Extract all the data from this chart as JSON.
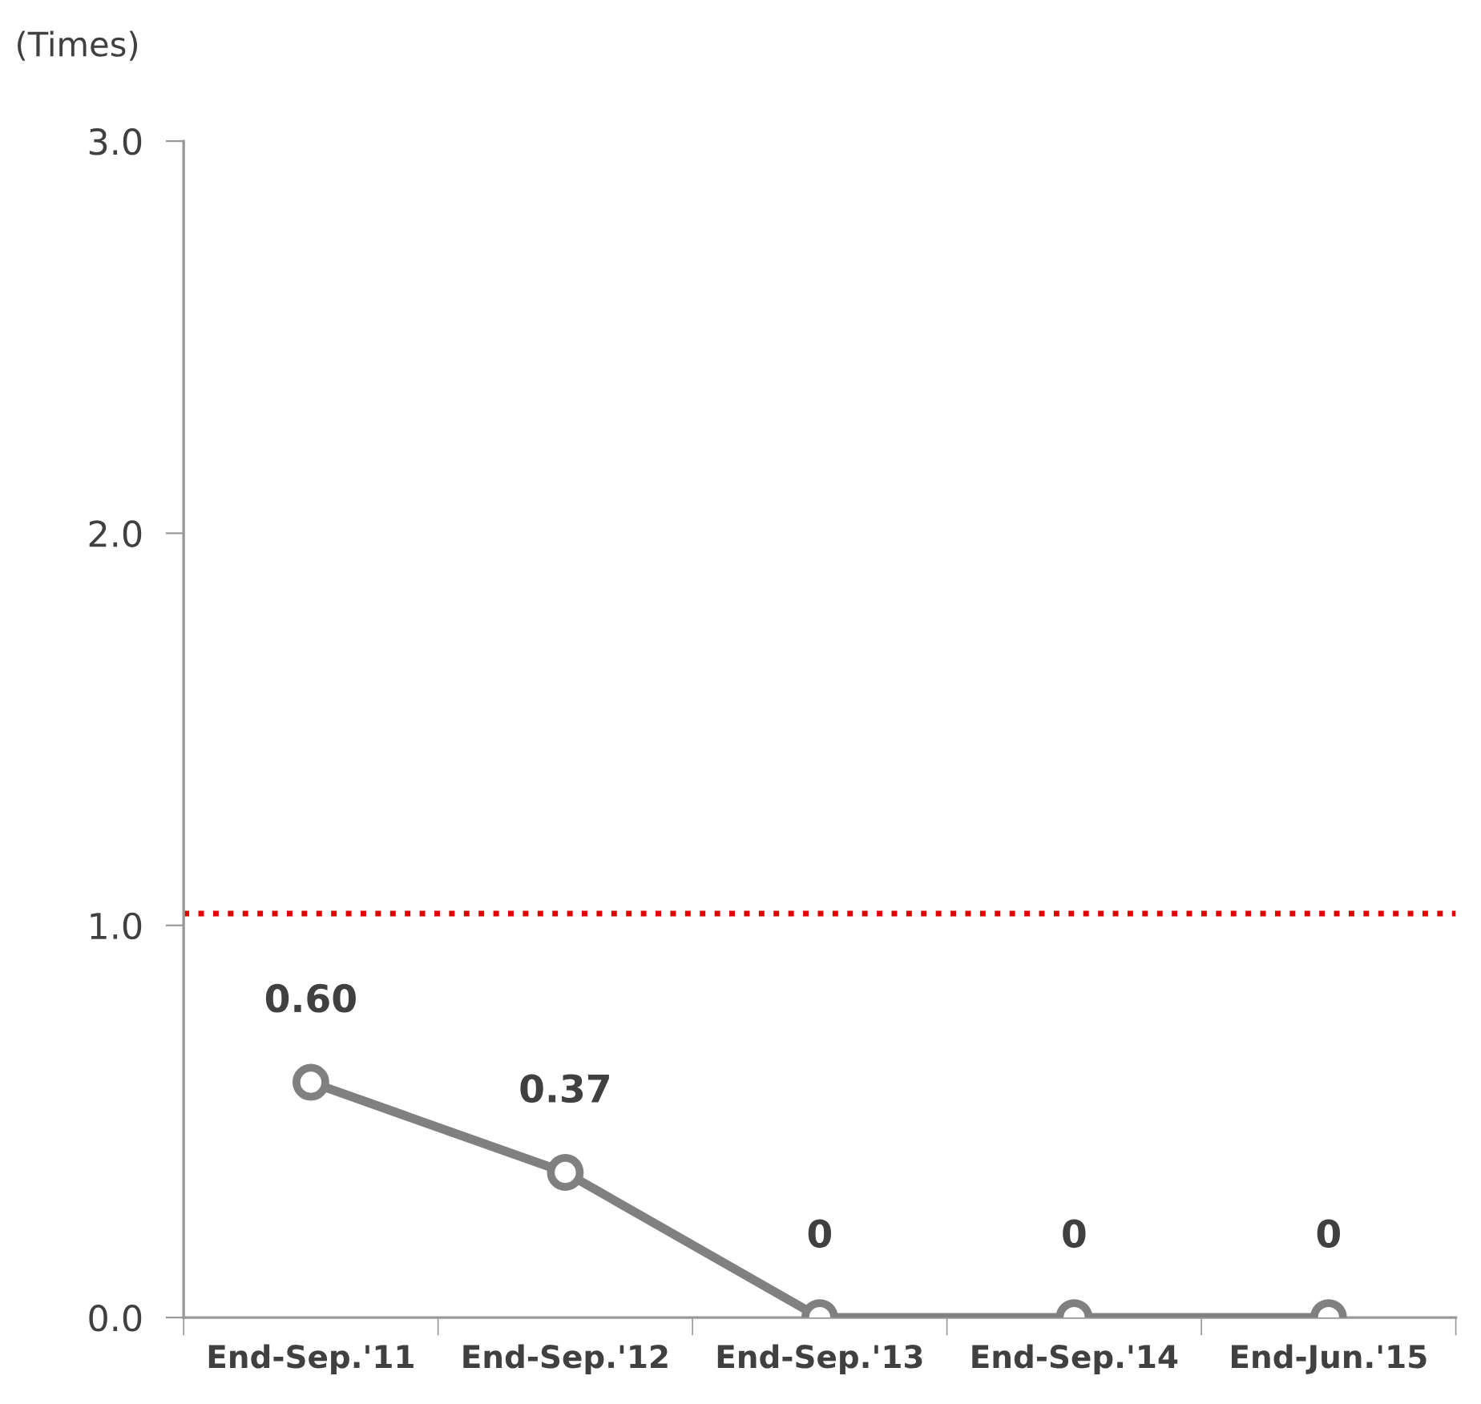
{
  "chart_data": {
    "type": "line",
    "ylabel": "(Times)",
    "categories": [
      "End-Sep.'11",
      "End-Sep.'12",
      "End-Sep.'13",
      "End-Sep.'14",
      "End-Jun.'15"
    ],
    "series": [
      {
        "color": "#808080",
        "values": [
          0.6,
          0.37,
          0,
          0,
          0
        ],
        "value_labels": [
          "0.60",
          "0.37",
          "0",
          "0",
          "0"
        ]
      }
    ],
    "ylim": [
      0,
      3
    ],
    "yticks": [
      {
        "value": 0,
        "label": "0.0"
      },
      {
        "value": 1,
        "label": "1.0"
      },
      {
        "value": 2,
        "label": "2.0"
      },
      {
        "value": 3,
        "label": "3.0"
      }
    ],
    "ref_lines": [
      {
        "axis": "y",
        "value": 1.03,
        "label": null,
        "color": "#e00000",
        "line_style": "dotted"
      }
    ],
    "marker": "circle",
    "line_style": "solid",
    "grid": false,
    "legend": false
  }
}
